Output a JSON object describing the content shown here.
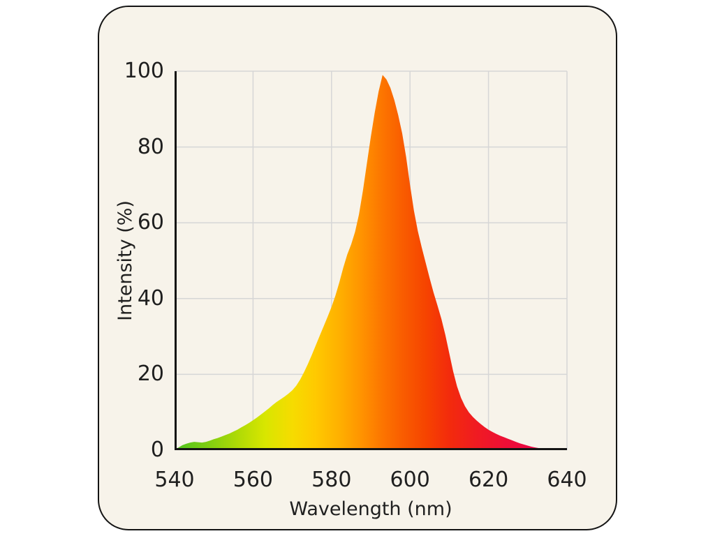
{
  "colors": {
    "page_background": "#ffffff",
    "card_background": "#f7f3ea",
    "card_border": "#141414",
    "grid": "#d6d6d6",
    "axis": "#141414",
    "text": "#1f1f1f"
  },
  "chart_data": {
    "type": "area",
    "title": "",
    "xlabel": "Wavelength (nm)",
    "ylabel": "Intensity (%)",
    "xlim": [
      540,
      640
    ],
    "ylim": [
      0,
      100
    ],
    "x_ticks": [
      540,
      560,
      580,
      600,
      620,
      640
    ],
    "y_ticks": [
      0,
      20,
      40,
      60,
      80,
      100
    ],
    "grid": true,
    "legend": false,
    "peak_wavelength_nm": 593,
    "peak_intensity_pct": 99,
    "x": [
      540,
      541,
      542,
      543,
      544,
      545,
      546,
      547,
      548,
      549,
      550,
      551,
      552,
      553,
      554,
      555,
      556,
      557,
      558,
      559,
      560,
      561,
      562,
      563,
      564,
      565,
      566,
      567,
      568,
      569,
      570,
      571,
      572,
      573,
      574,
      575,
      576,
      577,
      578,
      579,
      580,
      581,
      582,
      583,
      584,
      585,
      586,
      587,
      588,
      589,
      590,
      591,
      592,
      593,
      594,
      595,
      596,
      597,
      598,
      599,
      600,
      601,
      602,
      603,
      604,
      605,
      606,
      607,
      608,
      609,
      610,
      611,
      612,
      613,
      614,
      615,
      616,
      617,
      618,
      619,
      620,
      621,
      622,
      623,
      624,
      625,
      626,
      627,
      628,
      629,
      630,
      631,
      632,
      633,
      634,
      635,
      636,
      637,
      638,
      639,
      640
    ],
    "y": [
      0.2,
      0.7,
      1.3,
      1.7,
      2.0,
      2.2,
      2.1,
      2.0,
      2.2,
      2.5,
      2.9,
      3.2,
      3.6,
      4.0,
      4.4,
      4.9,
      5.4,
      6.0,
      6.6,
      7.2,
      7.9,
      8.6,
      9.4,
      10.2,
      11.0,
      11.9,
      12.7,
      13.4,
      14.1,
      14.9,
      15.8,
      17.0,
      18.6,
      20.6,
      22.8,
      25.2,
      27.7,
      30.2,
      32.7,
      35.2,
      37.8,
      40.8,
      44.3,
      48.2,
      51.6,
      54.3,
      57.6,
      62.2,
      68.5,
      75.6,
      82.6,
      89.0,
      94.6,
      99.0,
      97.8,
      95.6,
      92.4,
      88.4,
      83.6,
      77.4,
      70.0,
      63.2,
      57.8,
      53.4,
      49.4,
      45.4,
      41.6,
      38.2,
      34.6,
      30.4,
      25.6,
      20.8,
      16.8,
      13.8,
      11.6,
      10.0,
      8.8,
      7.8,
      6.9,
      6.1,
      5.4,
      4.8,
      4.3,
      3.8,
      3.4,
      3.0,
      2.6,
      2.2,
      1.8,
      1.5,
      1.2,
      0.9,
      0.7,
      0.5,
      0.3,
      0.2,
      0.1,
      0.1,
      0.0,
      0.0,
      0.0
    ],
    "gradient_stops": [
      {
        "wavelength": 540,
        "color": "#4fc31f"
      },
      {
        "wavelength": 548,
        "color": "#7ccd12"
      },
      {
        "wavelength": 556,
        "color": "#aeda06"
      },
      {
        "wavelength": 563,
        "color": "#d8e600"
      },
      {
        "wavelength": 570,
        "color": "#f6dc00"
      },
      {
        "wavelength": 576,
        "color": "#ffc900"
      },
      {
        "wavelength": 582,
        "color": "#ffb000"
      },
      {
        "wavelength": 588,
        "color": "#ff9100"
      },
      {
        "wavelength": 593,
        "color": "#fc7500"
      },
      {
        "wavelength": 598,
        "color": "#f95d00"
      },
      {
        "wavelength": 604,
        "color": "#f64400"
      },
      {
        "wavelength": 610,
        "color": "#f32b0c"
      },
      {
        "wavelength": 617,
        "color": "#f01b22"
      },
      {
        "wavelength": 624,
        "color": "#ed0f35"
      },
      {
        "wavelength": 632,
        "color": "#ea0645"
      },
      {
        "wavelength": 640,
        "color": "#e80050"
      }
    ]
  }
}
